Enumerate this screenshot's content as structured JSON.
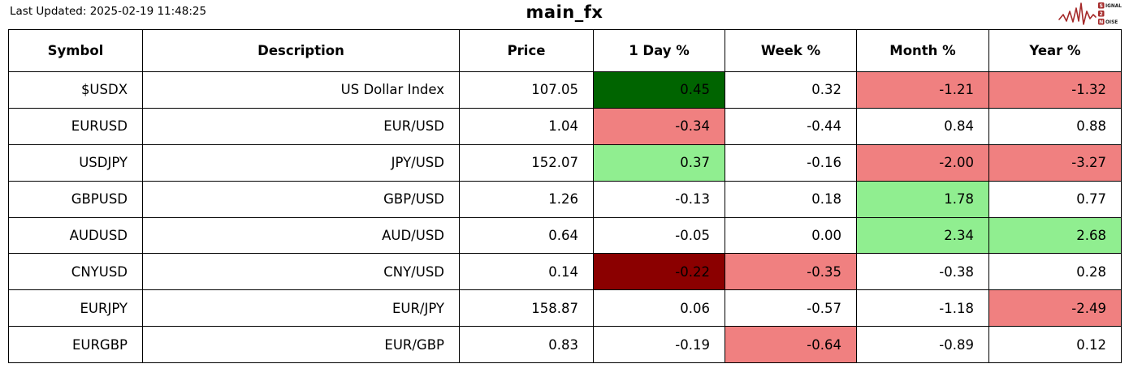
{
  "header": {
    "last_updated": "Last Updated: 2025-02-19 11:48:25",
    "title": "main_fx",
    "logo_words": [
      "SIGNAL",
      "2",
      "NOISE"
    ]
  },
  "colors": {
    "strong_up": "#006400",
    "up": "#90ee90",
    "down": "#f08080",
    "strong_down": "#8b0000",
    "neutral": "#ffffff",
    "border": "#000000",
    "logo_red": "#a52a2a"
  },
  "chart_data": {
    "type": "table",
    "title": "main_fx",
    "columns": [
      "Symbol",
      "Description",
      "Price",
      "1 Day %",
      "Week %",
      "Month %",
      "Year %"
    ],
    "rows": [
      {
        "symbol": "$USDX",
        "description": "US Dollar Index",
        "price": "107.05",
        "day": {
          "v": "0.45",
          "c": "strong_up"
        },
        "week": {
          "v": "0.32",
          "c": "none"
        },
        "month": {
          "v": "-1.21",
          "c": "down"
        },
        "year": {
          "v": "-1.32",
          "c": "down"
        }
      },
      {
        "symbol": "EURUSD",
        "description": "EUR/USD",
        "price": "1.04",
        "day": {
          "v": "-0.34",
          "c": "down"
        },
        "week": {
          "v": "-0.44",
          "c": "none"
        },
        "month": {
          "v": "0.84",
          "c": "none"
        },
        "year": {
          "v": "0.88",
          "c": "none"
        }
      },
      {
        "symbol": "USDJPY",
        "description": "JPY/USD",
        "price": "152.07",
        "day": {
          "v": "0.37",
          "c": "up"
        },
        "week": {
          "v": "-0.16",
          "c": "none"
        },
        "month": {
          "v": "-2.00",
          "c": "down"
        },
        "year": {
          "v": "-3.27",
          "c": "down"
        }
      },
      {
        "symbol": "GBPUSD",
        "description": "GBP/USD",
        "price": "1.26",
        "day": {
          "v": "-0.13",
          "c": "none"
        },
        "week": {
          "v": "0.18",
          "c": "none"
        },
        "month": {
          "v": "1.78",
          "c": "up"
        },
        "year": {
          "v": "0.77",
          "c": "none"
        }
      },
      {
        "symbol": "AUDUSD",
        "description": "AUD/USD",
        "price": "0.64",
        "day": {
          "v": "-0.05",
          "c": "none"
        },
        "week": {
          "v": "0.00",
          "c": "none"
        },
        "month": {
          "v": "2.34",
          "c": "up"
        },
        "year": {
          "v": "2.68",
          "c": "up"
        }
      },
      {
        "symbol": "CNYUSD",
        "description": "CNY/USD",
        "price": "0.14",
        "day": {
          "v": "-0.22",
          "c": "strong_down"
        },
        "week": {
          "v": "-0.35",
          "c": "down"
        },
        "month": {
          "v": "-0.38",
          "c": "none"
        },
        "year": {
          "v": "0.28",
          "c": "none"
        }
      },
      {
        "symbol": "EURJPY",
        "description": "EUR/JPY",
        "price": "158.87",
        "day": {
          "v": "0.06",
          "c": "none"
        },
        "week": {
          "v": "-0.57",
          "c": "none"
        },
        "month": {
          "v": "-1.18",
          "c": "none"
        },
        "year": {
          "v": "-2.49",
          "c": "down"
        }
      },
      {
        "symbol": "EURGBP",
        "description": "EUR/GBP",
        "price": "0.83",
        "day": {
          "v": "-0.19",
          "c": "none"
        },
        "week": {
          "v": "-0.64",
          "c": "down"
        },
        "month": {
          "v": "-0.89",
          "c": "none"
        },
        "year": {
          "v": "0.12",
          "c": "none"
        }
      }
    ]
  }
}
